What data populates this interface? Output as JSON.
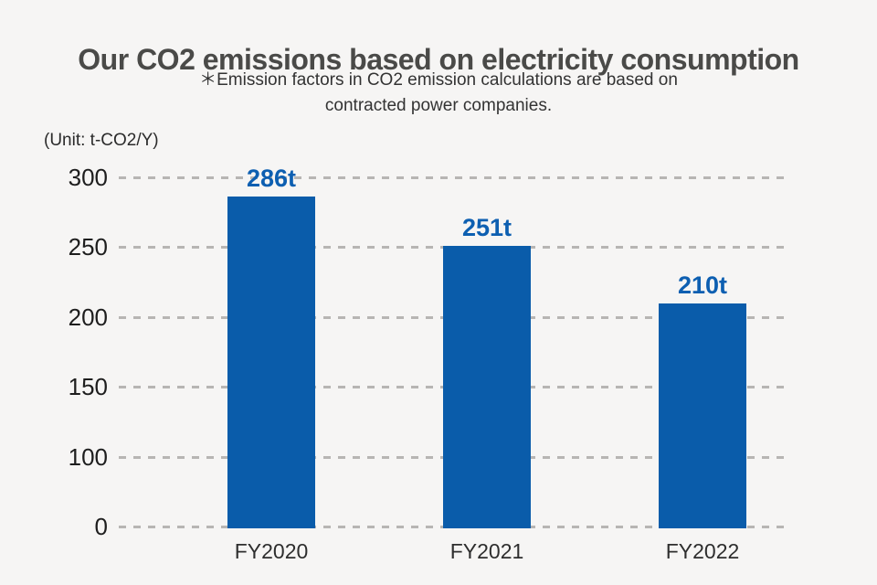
{
  "header": {
    "title": "Our CO2 emissions based on electricity consumption",
    "note_line1": "＊Emission factors in CO2 emission calculations are based on",
    "note_line2": "contracted power companies.",
    "unit_label": "(Unit: t-CO2/Y)"
  },
  "chart_data": {
    "type": "bar",
    "title": "Our CO2 emissions based on electricity consumption",
    "subtitle": "＊Emission factors in CO2 emission calculations are based on contracted power companies.",
    "unit_label": "(Unit: t-CO2/Y)",
    "categories": [
      "FY2020",
      "FY2021",
      "FY2022"
    ],
    "values": [
      286,
      251,
      210
    ],
    "value_labels": [
      "286t",
      "251t",
      "210t"
    ],
    "ytick_labels": [
      "300",
      "250",
      "200",
      "150",
      "100",
      "0"
    ],
    "yticks": [
      300,
      250,
      200,
      150,
      100,
      0
    ],
    "ylim": [
      0,
      300
    ],
    "grid": "horizontal-dashed",
    "legend": "none",
    "bar_color": "#0a5caa",
    "value_label_color": "#0d5fb1",
    "grid_color": "#b7b5b3"
  },
  "colors": {
    "background": "#f6f5f4",
    "title_text": "#4a4a48",
    "note_text": "#333333",
    "axis_text": "#1e1e1e"
  }
}
